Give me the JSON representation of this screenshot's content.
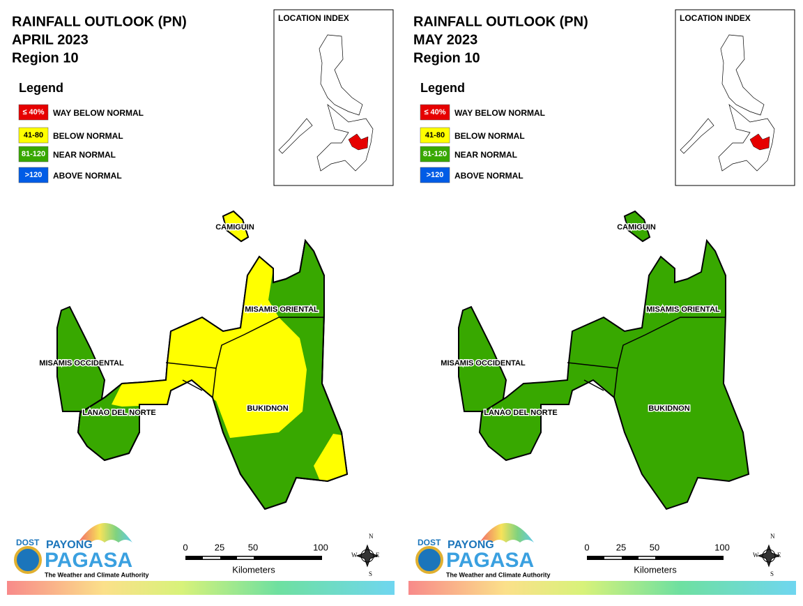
{
  "panels": [
    {
      "title": [
        "RAINFALL OUTLOOK (PN)",
        "APRIL 2023",
        "Region 10"
      ],
      "legend": {
        "title": "Legend",
        "items": [
          {
            "swatch": "≤ 40%",
            "label": "WAY BELOW NORMAL",
            "color": "#e60000"
          },
          {
            "swatch": "41-80",
            "label": "BELOW NORMAL",
            "color": "#ffff00"
          },
          {
            "swatch": "81-120",
            "label": "NEAR NORMAL",
            "color": "#38a800"
          },
          {
            "swatch": ">120",
            "label": "ABOVE NORMAL",
            "color": "#005ce6"
          }
        ]
      },
      "location_index": "LOCATION INDEX",
      "provinces": [
        "CAMIGUIN",
        "MISAMIS ORIENTAL",
        "MISAMIS OCCIDENTAL",
        "LANAO DEL NORTE",
        "BUKIDNON"
      ],
      "scale": {
        "ticks": [
          "0",
          "25",
          "50",
          "100"
        ],
        "unit": "Kilometers"
      },
      "compass": [
        "N",
        "E",
        "S",
        "W"
      ],
      "logo": {
        "agency": "DOST",
        "line1": "PAYONG",
        "line2": "PAGASA",
        "tagline": "The Weather and Climate Authority"
      }
    },
    {
      "title": [
        "RAINFALL OUTLOOK (PN)",
        "MAY 2023",
        "Region 10"
      ],
      "legend": {
        "title": "Legend",
        "items": [
          {
            "swatch": "≤ 40%",
            "label": "WAY BELOW NORMAL",
            "color": "#e60000"
          },
          {
            "swatch": "41-80",
            "label": "BELOW NORMAL",
            "color": "#ffff00"
          },
          {
            "swatch": "81-120",
            "label": "NEAR NORMAL",
            "color": "#38a800"
          },
          {
            "swatch": ">120",
            "label": "ABOVE NORMAL",
            "color": "#005ce6"
          }
        ]
      },
      "location_index": "LOCATION INDEX",
      "provinces": [
        "CAMIGUIN",
        "MISAMIS ORIENTAL",
        "MISAMIS OCCIDENTAL",
        "LANAO DEL NORTE",
        "BUKIDNON"
      ],
      "scale": {
        "ticks": [
          "0",
          "25",
          "50",
          "100"
        ],
        "unit": "Kilometers"
      },
      "compass": [
        "N",
        "E",
        "S",
        "W"
      ],
      "logo": {
        "agency": "DOST",
        "line1": "PAYONG",
        "line2": "PAGASA",
        "tagline": "The Weather and Climate Authority"
      }
    }
  ]
}
